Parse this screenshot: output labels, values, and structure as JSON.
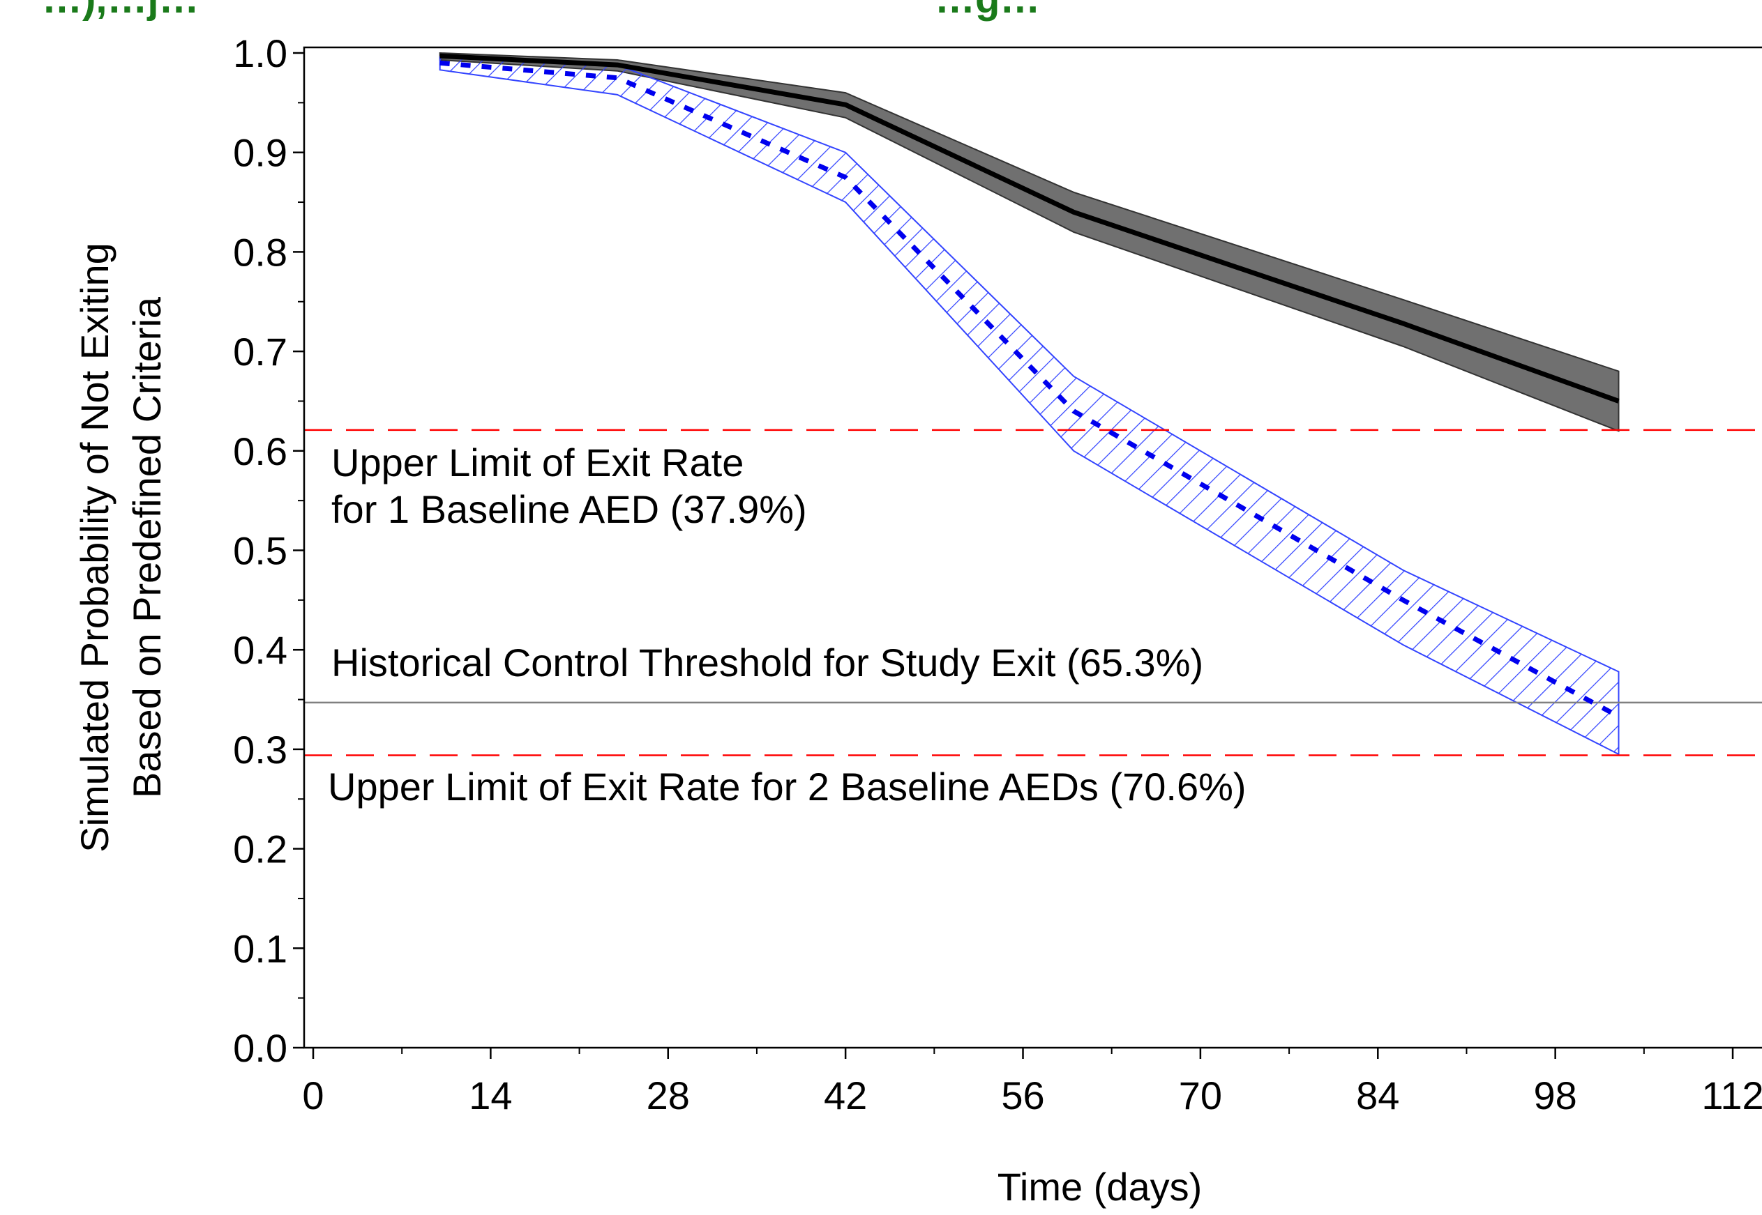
{
  "chart_data": {
    "type": "line",
    "title": "",
    "title_fragment_left": "…),…j…",
    "title_fragment_right": "…g…",
    "xlabel": "Time (days)",
    "ylabel_lines": [
      "Simulated Probability of Not Exiting",
      "Based on Predefined Criteria"
    ],
    "xlim": [
      0,
      112
    ],
    "ylim": [
      0,
      1
    ],
    "x_ticks": [
      0,
      14,
      28,
      42,
      56,
      70,
      84,
      98,
      112
    ],
    "x_tick_labels": [
      "0",
      "14",
      "28",
      "42",
      "56",
      "70",
      "84",
      "98",
      "112"
    ],
    "y_ticks": [
      0,
      0.1,
      0.2,
      0.3,
      0.4,
      0.5,
      0.6,
      0.7,
      0.8,
      0.9,
      1.0
    ],
    "y_tick_labels": [
      "0.0",
      "0.1",
      "0.2",
      "0.3",
      "0.4",
      "0.5",
      "0.6",
      "0.7",
      "0.8",
      "0.9",
      "1.0"
    ],
    "grid": false,
    "series": [
      {
        "style": "solid",
        "color": "#000000",
        "band_color": "#707070",
        "band_style": "filled",
        "x": [
          10,
          24,
          42,
          60,
          86,
          103
        ],
        "y": [
          0.997,
          0.988,
          0.948,
          0.84,
          0.728,
          0.65
        ],
        "lower": [
          0.993,
          0.982,
          0.935,
          0.82,
          0.705,
          0.62
        ],
        "upper": [
          1.0,
          0.993,
          0.96,
          0.86,
          0.752,
          0.68
        ]
      },
      {
        "style": "dashed",
        "color": "#0000ee",
        "band_color": "#3344ff",
        "band_style": "hatched",
        "x": [
          10,
          24,
          42,
          60,
          86,
          103
        ],
        "y": [
          0.99,
          0.975,
          0.875,
          0.64,
          0.45,
          0.333
        ],
        "lower": [
          0.983,
          0.958,
          0.85,
          0.6,
          0.405,
          0.295
        ],
        "upper": [
          0.996,
          0.988,
          0.9,
          0.675,
          0.48,
          0.378
        ]
      }
    ],
    "reference_lines": [
      {
        "y": 0.621,
        "color": "#ff0000",
        "style": "dashed"
      },
      {
        "y": 0.347,
        "color": "#808080",
        "style": "solid"
      },
      {
        "y": 0.294,
        "color": "#ff0000",
        "style": "dashed"
      }
    ],
    "annotations": [
      {
        "lines": [
          "Upper Limit of Exit Rate",
          "for 1 Baseline AED (37.9%)"
        ]
      },
      {
        "lines": [
          "Historical Control Threshold for Study Exit (65.3%)"
        ]
      },
      {
        "lines": [
          "Upper Limit of Exit Rate for 2 Baseline AEDs (70.6%)"
        ]
      }
    ]
  }
}
